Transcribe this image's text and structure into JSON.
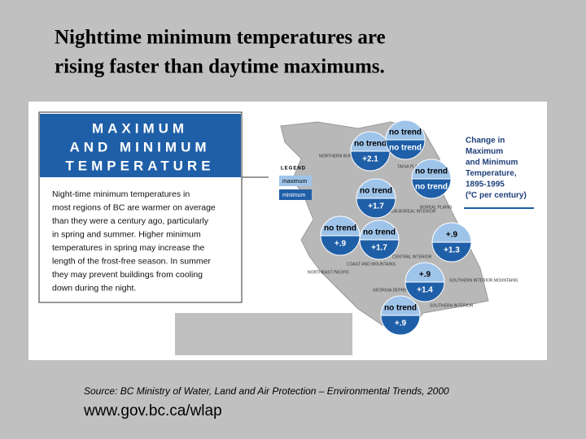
{
  "title": [
    "Nighttime minimum temperatures are",
    "rising faster than daytime maximums."
  ],
  "panel": {
    "heading": [
      "MAXIMUM",
      "AND MINIMUM",
      "TEMPERATURE"
    ],
    "body": [
      "Night-time minimum temperatures in",
      "most regions of BC are warmer on average",
      "than they were a century ago, particularly",
      "in spring and summer. Higher minimum",
      "temperatures in spring may increase the",
      "length of the frost-free season. In summer",
      "they may prevent buildings from cooling",
      "down during the night."
    ]
  },
  "legend": {
    "title": "LEGEND",
    "maximum": "maximum",
    "minimum": "minimum"
  },
  "map_title": [
    "Change in",
    "Maximum",
    "and Minimum",
    "Temperature,",
    "1895-1995",
    "(ºC per century)"
  ],
  "regions": [
    "NORTHERN BOREAL MOUNTAINS",
    "TAIGA PLAINS",
    "SUB-BOREAL INTERIOR",
    "BOREAL PLAINS",
    "NORTHEAST PACIFIC",
    "COAST AND MOUNTAINS",
    "CENTRAL INTERIOR",
    "GEORGIA DEPRESSION",
    "SOUTHERN INTERIOR MOUNTAINS",
    "SOUTHERN INTERIOR"
  ],
  "bubbles": [
    {
      "max": "no trend",
      "min": "+2.1"
    },
    {
      "max": "no trend",
      "min": "no trend"
    },
    {
      "max": "no trend",
      "min": "no trend"
    },
    {
      "max": "no trend",
      "min": "+1.7"
    },
    {
      "max": "no trend",
      "min": "+.9"
    },
    {
      "max": "no trend",
      "min": "+1.7"
    },
    {
      "max": "+.9",
      "min": "+1.3"
    },
    {
      "max": "+.9",
      "min": "+1.4"
    },
    {
      "max": "no trend",
      "min": "+.9"
    }
  ],
  "source": "Source: BC Ministry of Water, Land and Air Protection – Environmental Trends, 2000",
  "url": "www.gov.bc.ca/wlap"
}
